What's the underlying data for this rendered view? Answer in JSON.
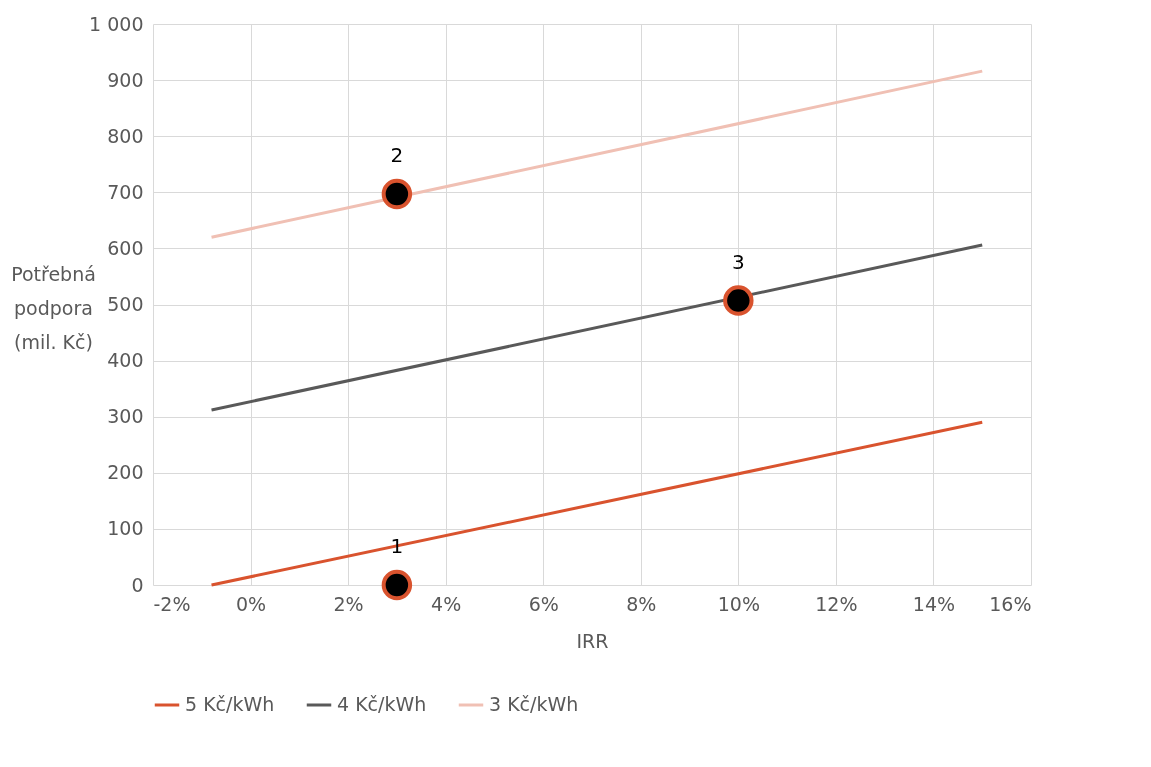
{
  "chart_data": {
    "type": "line",
    "xlabel": "IRR",
    "ylabel": "Potřebná\npodpora\n(mil. Kč)",
    "xlim": [
      -2,
      16
    ],
    "xticks": [
      {
        "value": -2,
        "label": "-2%"
      },
      {
        "value": 0,
        "label": "0%"
      },
      {
        "value": 2,
        "label": "2%"
      },
      {
        "value": 4,
        "label": "4%"
      },
      {
        "value": 6,
        "label": "6%"
      },
      {
        "value": 8,
        "label": "8%"
      },
      {
        "value": 10,
        "label": "10%"
      },
      {
        "value": 12,
        "label": "12%"
      },
      {
        "value": 14,
        "label": "14%"
      },
      {
        "value": 16,
        "label": "16%"
      }
    ],
    "ylim": [
      0,
      1000
    ],
    "yticks": [
      0,
      100,
      200,
      300,
      400,
      500,
      600,
      700,
      800,
      900,
      {
        "value": 1000,
        "label": "1 000"
      }
    ],
    "grid": true,
    "legend": "bottom",
    "marker": "none",
    "line_style": "solid",
    "series": [
      {
        "name": "5 Kč/kWh",
        "color": "#d9532e",
        "x": [
          -0.8,
          15
        ],
        "values": [
          0,
          290
        ]
      },
      {
        "name": "4 Kč/kWh",
        "color": "#595959",
        "x": [
          -0.8,
          15
        ],
        "values": [
          312,
          606
        ]
      },
      {
        "name": "3 Kč/kWh",
        "color": "#f0c0b4",
        "x": [
          -0.8,
          15
        ],
        "values": [
          620,
          916
        ]
      },
      {
        "type": "scatter",
        "color": "#000000",
        "marker": "circle",
        "x": [
          3,
          3,
          10
        ],
        "values": [
          0,
          697,
          507
        ]
      }
    ],
    "annotations": [
      "1",
      "2",
      "3"
    ]
  }
}
